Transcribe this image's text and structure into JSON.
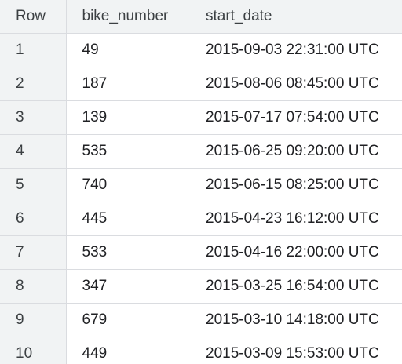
{
  "table": {
    "headers": [
      "Row",
      "bike_number",
      "start_date"
    ],
    "rows": [
      [
        "1",
        "49",
        "2015-09-03 22:31:00 UTC"
      ],
      [
        "2",
        "187",
        "2015-08-06 08:45:00 UTC"
      ],
      [
        "3",
        "139",
        "2015-07-17 07:54:00 UTC"
      ],
      [
        "4",
        "535",
        "2015-06-25 09:20:00 UTC"
      ],
      [
        "5",
        "740",
        "2015-06-15 08:25:00 UTC"
      ],
      [
        "6",
        "445",
        "2015-04-23 16:12:00 UTC"
      ],
      [
        "7",
        "533",
        "2015-04-16 22:00:00 UTC"
      ],
      [
        "8",
        "347",
        "2015-03-25 16:54:00 UTC"
      ],
      [
        "9",
        "679",
        "2015-03-10 14:18:00 UTC"
      ],
      [
        "10",
        "449",
        "2015-03-09 15:53:00 UTC"
      ]
    ]
  },
  "colors": {
    "header_background": "#f1f3f4",
    "row_number_background": "#f1f3f4",
    "grid_line": "#dadce0",
    "text": "#202124"
  }
}
